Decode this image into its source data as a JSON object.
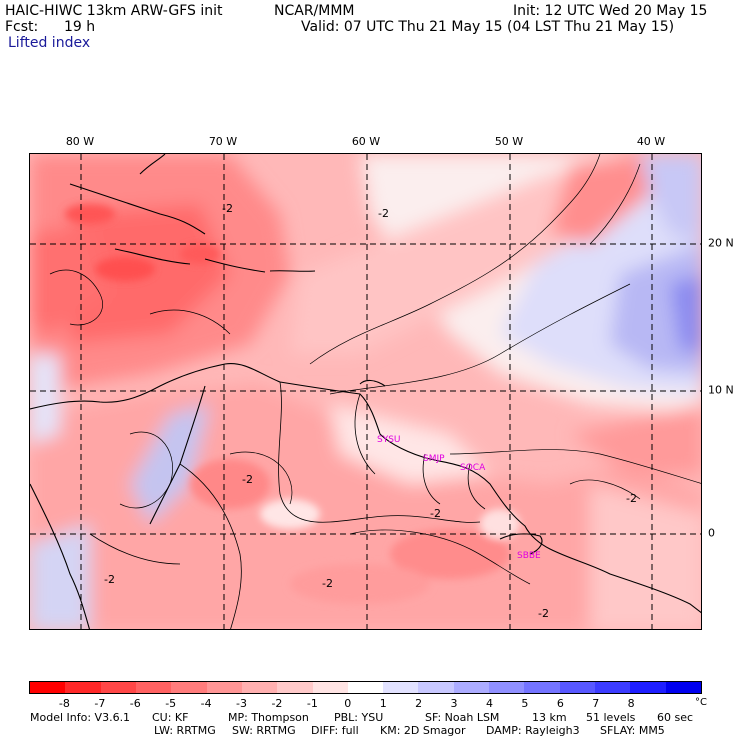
{
  "header": {
    "model": "HAIC-HIWC 13km ARW-GFS init",
    "org": "NCAR/MMM",
    "init": "Init: 12 UTC Wed 20 May 15",
    "fcst_label": "Fcst:",
    "fcst_value": "19 h",
    "valid": "Valid: 07 UTC Thu 21 May 15 (04 LST Thu 21 May 15)",
    "field": "Lifted index"
  },
  "map": {
    "lon_labels": [
      "80 W",
      "70 W",
      "60 W",
      "50 W",
      "40 W"
    ],
    "lat_labels": [
      "20 N",
      "10 N",
      "0"
    ],
    "stations": [
      "SYSU",
      "SMJP",
      "SOCA",
      "SBBE"
    ],
    "contour_labels": [
      "-2",
      "-2",
      "-2",
      "-2",
      "-2",
      "-2",
      "-2",
      "-2"
    ]
  },
  "colorbar": {
    "colors": [
      "#ff0000",
      "#ff2828",
      "#ff4747",
      "#ff6262",
      "#ff7c7c",
      "#ff9696",
      "#ffb0b0",
      "#ffcaca",
      "#ffe4e4",
      "#ffffff",
      "#e2e2ff",
      "#c8c8ff",
      "#acacff",
      "#9090ff",
      "#7474ff",
      "#5858ff",
      "#3c3cff",
      "#1e1eff",
      "#0000f0"
    ],
    "labels": [
      "-8",
      "-7",
      "-6",
      "-5",
      "-4",
      "-3",
      "-2",
      "-1",
      "0",
      "1",
      "2",
      "3",
      "4",
      "5",
      "6",
      "7",
      "8"
    ],
    "unit": "°C"
  },
  "footer": {
    "line1": [
      "Model Info: V3.6.1",
      "CU: KF",
      "MP: Thompson",
      "PBL: YSU",
      "SF: Noah LSM",
      "13 km",
      "51 levels",
      "60 sec"
    ],
    "line2": [
      "LW: RRTMG",
      "SW: RRTMG",
      "DIFF: full",
      "KM: 2D Smagor",
      "DAMP: Rayleigh3",
      "SFLAY: MM5"
    ]
  }
}
